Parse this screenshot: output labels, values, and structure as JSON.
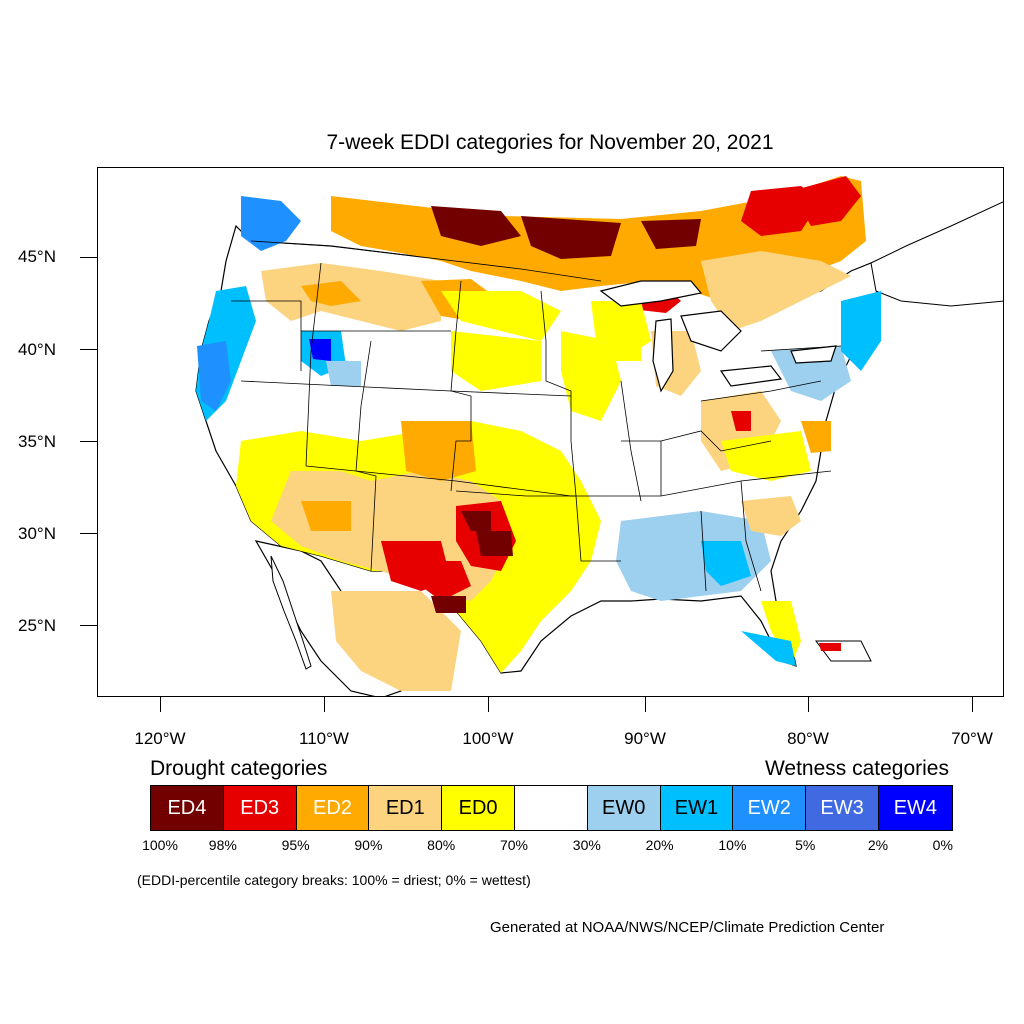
{
  "title": "7-week EDDI categories for November 20, 2021",
  "lat_labels": [
    "45°N",
    "40°N",
    "35°N",
    "30°N",
    "25°N"
  ],
  "lon_labels": [
    "120°W",
    "110°W",
    "100°W",
    "90°W",
    "80°W",
    "70°W"
  ],
  "legend": {
    "drought_heading": "Drought categories",
    "wetness_heading": "Wetness categories",
    "categories": [
      {
        "label": "ED4",
        "color": "#730000",
        "text_color": "#ffffff"
      },
      {
        "label": "ED3",
        "color": "#e60000",
        "text_color": "#ffffff"
      },
      {
        "label": "ED2",
        "color": "#ffaa00",
        "text_color": "#ffffff"
      },
      {
        "label": "ED1",
        "color": "#fcd37f",
        "text_color": "#000000"
      },
      {
        "label": "ED0",
        "color": "#ffff00",
        "text_color": "#000000"
      },
      {
        "label": "",
        "color": "#ffffff",
        "text_color": "#000000"
      },
      {
        "label": "EW0",
        "color": "#9dcfef",
        "text_color": "#000000"
      },
      {
        "label": "EW1",
        "color": "#00bfff",
        "text_color": "#000000"
      },
      {
        "label": "EW2",
        "color": "#1e90ff",
        "text_color": "#ffffff"
      },
      {
        "label": "EW3",
        "color": "#4169e1",
        "text_color": "#ffffff"
      },
      {
        "label": "EW4",
        "color": "#0000ff",
        "text_color": "#ffffff"
      }
    ],
    "percentiles": [
      "100%",
      "98%",
      "95%",
      "90%",
      "80%",
      "70%",
      "30%",
      "20%",
      "10%",
      "5%",
      "2%",
      "0%"
    ]
  },
  "note": "(EDDI-percentile category breaks: 100% = driest; 0% = wettest)",
  "credit": "Generated at NOAA/NWS/NCEP/Climate Prediction Center"
}
